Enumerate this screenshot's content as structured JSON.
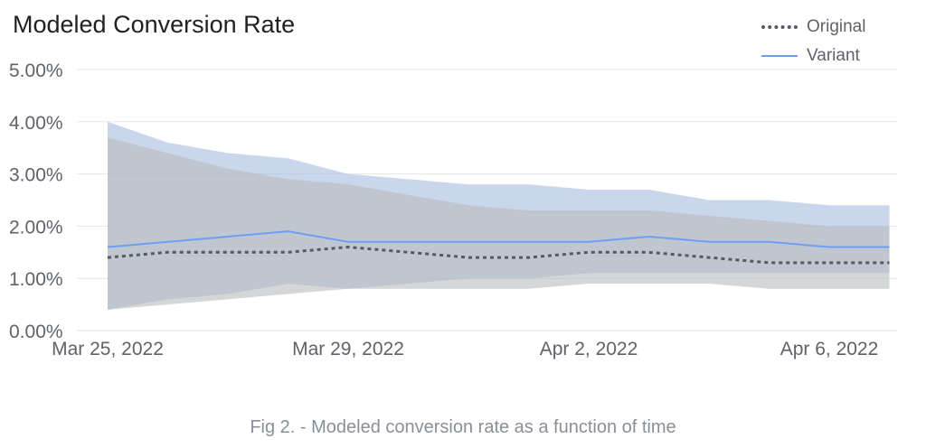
{
  "chart_data": {
    "type": "area",
    "title": "Modeled Conversion Rate",
    "caption": "Fig 2. - Modeled conversion rate as a function of time",
    "xlabel": "",
    "ylabel": "",
    "ylim": [
      0,
      5
    ],
    "yticks": [
      {
        "value": 0,
        "label": "0.00%"
      },
      {
        "value": 1,
        "label": "1.00%"
      },
      {
        "value": 2,
        "label": "2.00%"
      },
      {
        "value": 3,
        "label": "3.00%"
      },
      {
        "value": 4,
        "label": "4.00%"
      },
      {
        "value": 5,
        "label": "5.00%"
      }
    ],
    "xlim": [
      0,
      13.3
    ],
    "xticks": [
      {
        "value": 0,
        "label": "Mar 25, 2022"
      },
      {
        "value": 4,
        "label": "Mar 29, 2022"
      },
      {
        "value": 8,
        "label": "Apr 2, 2022"
      },
      {
        "value": 12,
        "label": "Apr 6, 2022"
      }
    ],
    "x": [
      0,
      1,
      2,
      3,
      4,
      5,
      6,
      7,
      8,
      9,
      10,
      11,
      12,
      13
    ],
    "series": [
      {
        "name": "Original",
        "style": "dotted",
        "color": "#555a60",
        "band_color": "#b8babd",
        "values": [
          1.4,
          1.5,
          1.5,
          1.5,
          1.6,
          1.5,
          1.4,
          1.4,
          1.5,
          1.5,
          1.4,
          1.3,
          1.3,
          1.3
        ],
        "lower": [
          0.4,
          0.5,
          0.6,
          0.7,
          0.8,
          0.8,
          0.8,
          0.8,
          0.9,
          0.9,
          0.9,
          0.8,
          0.8,
          0.8
        ],
        "upper": [
          3.7,
          3.4,
          3.1,
          2.9,
          2.8,
          2.6,
          2.4,
          2.3,
          2.3,
          2.3,
          2.2,
          2.1,
          2.0,
          2.0
        ]
      },
      {
        "name": "Variant",
        "style": "solid",
        "color": "#6e9ef0",
        "band_color": "#a9bddf",
        "values": [
          1.6,
          1.7,
          1.8,
          1.9,
          1.7,
          1.7,
          1.7,
          1.7,
          1.7,
          1.8,
          1.7,
          1.7,
          1.6,
          1.6
        ],
        "lower": [
          0.4,
          0.6,
          0.7,
          0.9,
          0.8,
          0.9,
          1.0,
          1.0,
          1.1,
          1.1,
          1.1,
          1.1,
          1.1,
          1.1
        ],
        "upper": [
          4.0,
          3.6,
          3.4,
          3.3,
          3.0,
          2.9,
          2.8,
          2.8,
          2.7,
          2.7,
          2.5,
          2.5,
          2.4,
          2.4
        ]
      }
    ],
    "legend": {
      "position": "top-right"
    },
    "grid": true
  }
}
